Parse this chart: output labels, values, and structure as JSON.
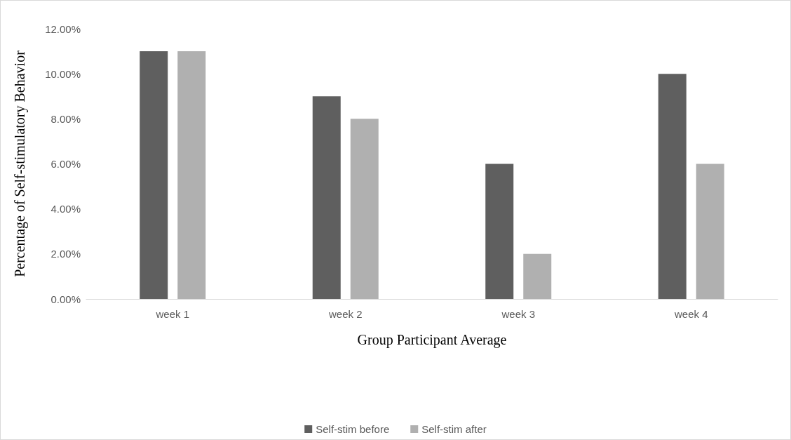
{
  "chart_data": {
    "type": "bar",
    "xlabel": "Group Participant Average",
    "ylabel": "Percentage of Self-stimulatory Behavior",
    "categories": [
      "week 1",
      "week 2",
      "week 3",
      "week 4"
    ],
    "series": [
      {
        "name": "Self-stim before",
        "color": "#5f5f5f",
        "values": [
          11,
          9,
          6,
          10
        ]
      },
      {
        "name": "Self-stim after",
        "color": "#b0b0b0",
        "values": [
          11,
          8,
          2,
          6
        ]
      }
    ],
    "ylim": [
      0,
      12
    ],
    "yticks": [
      {
        "value": 0,
        "label": "0.00%"
      },
      {
        "value": 2,
        "label": "2.00%"
      },
      {
        "value": 4,
        "label": "4.00%"
      },
      {
        "value": 6,
        "label": "6.00%"
      },
      {
        "value": 8,
        "label": "8.00%"
      },
      {
        "value": 10,
        "label": "10.00%"
      },
      {
        "value": 12,
        "label": "12.00%"
      }
    ],
    "grid": false,
    "legend": "bottom"
  }
}
